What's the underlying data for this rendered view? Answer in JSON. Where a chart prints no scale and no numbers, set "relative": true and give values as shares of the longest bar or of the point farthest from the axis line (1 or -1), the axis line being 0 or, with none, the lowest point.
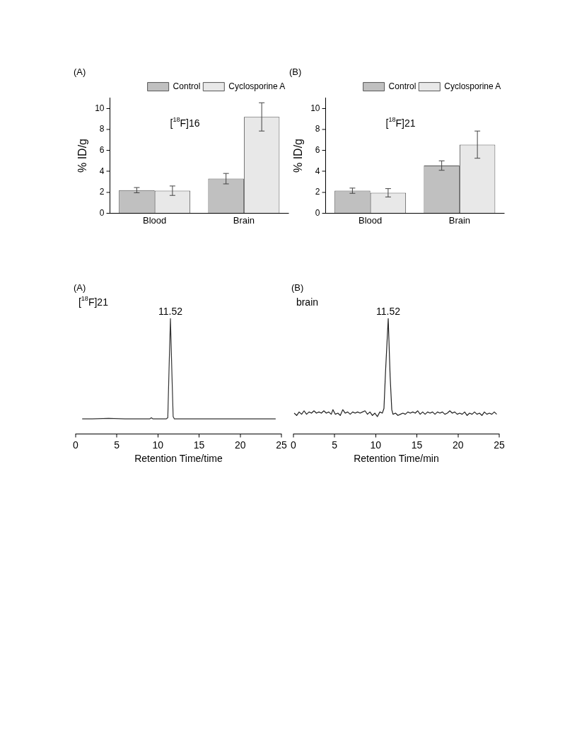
{
  "chart_data": [
    {
      "type": "bar",
      "title": "(A)",
      "categories": [
        "Blood",
        "Brain"
      ],
      "ylabel": "% ID/g",
      "ylim": [
        0,
        11
      ],
      "yticks": [
        0,
        2,
        4,
        6,
        8,
        10
      ],
      "legend": "top right",
      "annotations": [
        "[$^{18}$F]16"
      ],
      "series": [
        {
          "name": "Control",
          "color": "#c0c0c0",
          "values": [
            2.2,
            3.3
          ],
          "errors": [
            0.25,
            0.5
          ]
        },
        {
          "name": "Cyclosporine A",
          "color": "#e8e8e8",
          "values": [
            2.15,
            9.2
          ],
          "errors": [
            0.45,
            1.35
          ]
        }
      ]
    },
    {
      "type": "bar",
      "title": "(B)",
      "categories": [
        "Blood",
        "Brain"
      ],
      "ylabel": "% ID/g",
      "ylim": [
        0,
        11
      ],
      "yticks": [
        0,
        2,
        4,
        6,
        8,
        10
      ],
      "legend": "top right",
      "annotations": [
        "[$^{18}$F]21"
      ],
      "series": [
        {
          "name": "Control",
          "color": "#c0c0c0",
          "values": [
            2.15,
            4.55
          ],
          "errors": [
            0.25,
            0.45
          ]
        },
        {
          "name": "Cyclosporine A",
          "color": "#e8e8e8",
          "values": [
            1.95,
            6.55
          ],
          "errors": [
            0.4,
            1.3
          ]
        }
      ]
    },
    {
      "type": "line",
      "title": "(A)",
      "relative": true,
      "xlabel": "Retention Time/time",
      "xlim": [
        0,
        25
      ],
      "xticks": [
        0,
        5,
        10,
        15,
        20,
        25
      ],
      "annotations": [
        "[$^{18}$F]21",
        {
          "text": "11.52",
          "x": 11.52,
          "y": 1
        }
      ],
      "series": [
        {
          "color": "#333333",
          "x": [
            0.8,
            2,
            4,
            6,
            8,
            9,
            9.2,
            9.4,
            10,
            11,
            11.2,
            11.35,
            11.52,
            11.7,
            11.85,
            12,
            13,
            15,
            17,
            19,
            21,
            23,
            24.3
          ],
          "values": [
            0.13,
            0.13,
            0.135,
            0.13,
            0.13,
            0.13,
            0.14,
            0.13,
            0.13,
            0.13,
            0.14,
            0.56,
            1,
            0.52,
            0.15,
            0.13,
            0.13,
            0.13,
            0.13,
            0.13,
            0.13,
            0.13,
            0.13
          ]
        }
      ]
    },
    {
      "type": "line",
      "title": "(B)",
      "relative": true,
      "xlabel": "Retention Time/min",
      "xlim": [
        0,
        25
      ],
      "xticks": [
        0,
        5,
        10,
        15,
        20,
        25
      ],
      "annotations": [
        "brain",
        {
          "text": "11.52",
          "x": 11.52,
          "y": 1
        }
      ],
      "series": [
        {
          "color": "#222222",
          "x": [
            0.1,
            0.4,
            0.7,
            1.0,
            1.3,
            1.6,
            1.9,
            2.2,
            2.5,
            2.8,
            3.1,
            3.4,
            3.7,
            4.0,
            4.3,
            4.6,
            4.8,
            5.1,
            5.4,
            5.7,
            6.0,
            6.3,
            6.6,
            6.9,
            7.2,
            7.5,
            7.8,
            8.1,
            8.4,
            8.7,
            9.0,
            9.3,
            9.6,
            9.9,
            10.2,
            10.5,
            10.8,
            11.0,
            11.2,
            11.52,
            11.75,
            11.95,
            12.1,
            12.4,
            12.7,
            13.0,
            13.3,
            13.6,
            13.9,
            14.2,
            14.5,
            14.8,
            15.1,
            15.4,
            15.7,
            16.0,
            16.3,
            16.6,
            16.9,
            17.2,
            17.5,
            17.8,
            18.1,
            18.4,
            18.7,
            19.0,
            19.3,
            19.6,
            19.9,
            20.2,
            20.5,
            20.8,
            21.1,
            21.4,
            21.7,
            22.0,
            22.3,
            22.6,
            22.9,
            23.2,
            23.5,
            23.8,
            24.1,
            24.4,
            24.7
          ],
          "values": [
            0.18,
            0.16,
            0.19,
            0.17,
            0.2,
            0.17,
            0.19,
            0.18,
            0.2,
            0.18,
            0.19,
            0.18,
            0.2,
            0.18,
            0.19,
            0.17,
            0.21,
            0.17,
            0.18,
            0.16,
            0.21,
            0.18,
            0.19,
            0.17,
            0.19,
            0.18,
            0.19,
            0.18,
            0.19,
            0.2,
            0.17,
            0.19,
            0.16,
            0.18,
            0.15,
            0.19,
            0.18,
            0.22,
            0.55,
            1,
            0.5,
            0.21,
            0.17,
            0.18,
            0.16,
            0.17,
            0.18,
            0.17,
            0.19,
            0.18,
            0.19,
            0.18,
            0.2,
            0.17,
            0.19,
            0.17,
            0.19,
            0.18,
            0.19,
            0.17,
            0.19,
            0.18,
            0.19,
            0.17,
            0.18,
            0.2,
            0.18,
            0.19,
            0.17,
            0.18,
            0.17,
            0.19,
            0.16,
            0.18,
            0.17,
            0.19,
            0.17,
            0.18,
            0.16,
            0.19,
            0.17,
            0.18,
            0.17,
            0.19,
            0.17
          ]
        }
      ]
    }
  ]
}
